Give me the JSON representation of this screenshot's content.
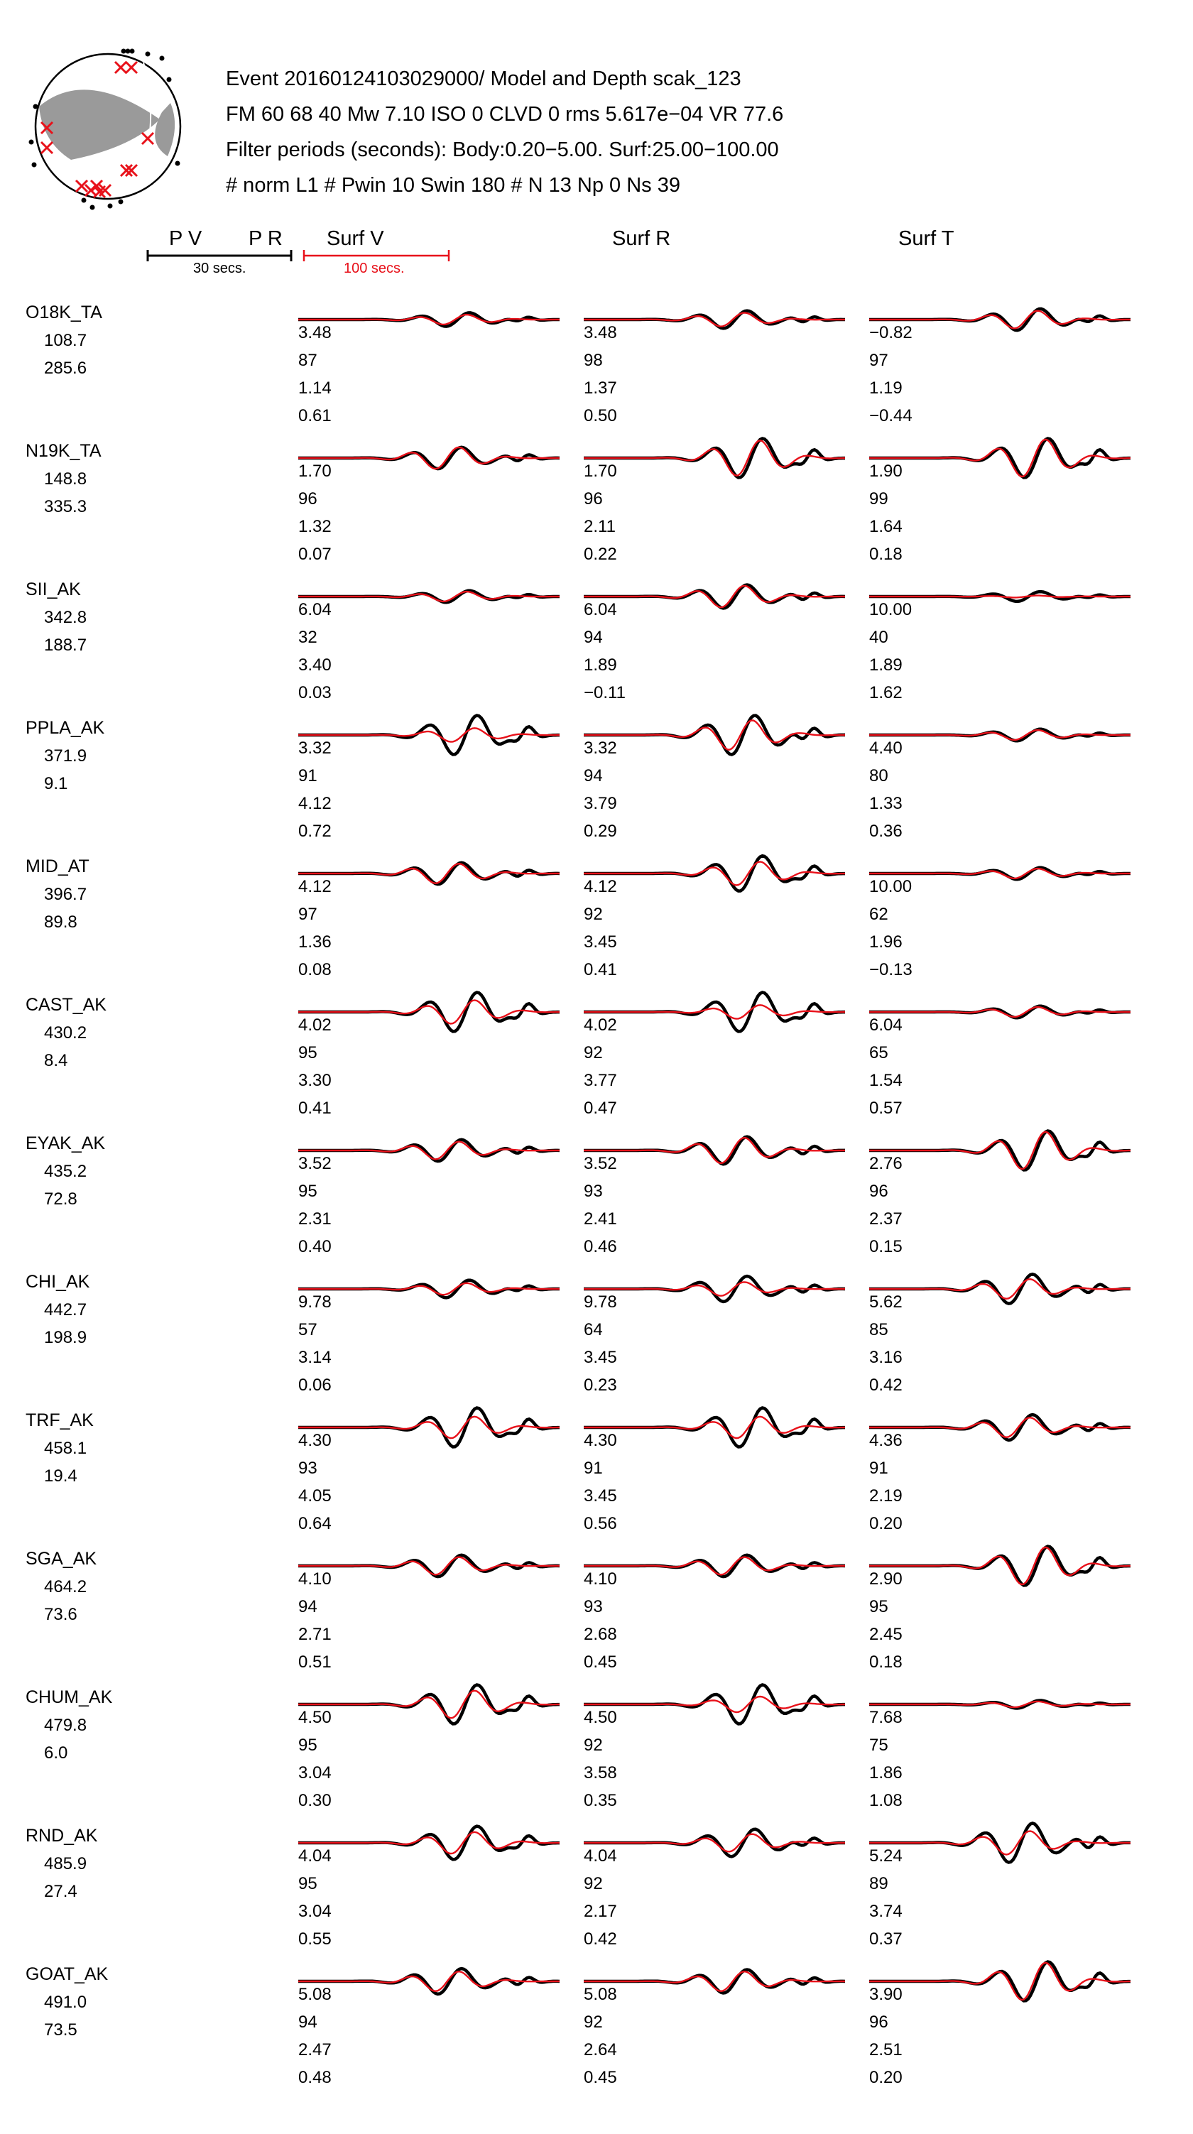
{
  "header": {
    "lines": [
      "Event 20160124103029000/ Model and Depth scak_123",
      "FM 60 68 40 Mw 7.10 ISO   0 CLVD   0 rms 5.617e−04 VR 77.6",
      "Filter periods (seconds): Body:0.20−5.00. Surf:25.00−100.00",
      "# norm L1     # Pwin 10 Swin 180     # N 13 Np 0 Ns 39"
    ]
  },
  "columns": {
    "pv": "P V",
    "pr": "P R",
    "surf_v": "Surf V",
    "surf_r": "Surf R",
    "surf_t": "Surf T",
    "body_scale": "30 secs.",
    "surf_scale": "100 secs."
  },
  "colors": {
    "observed": "#000000",
    "synthetic": "#e8111a",
    "nodal": "#9a9a9a",
    "scale_surf": "#e8111a"
  },
  "beachball": {
    "x_marks": 12,
    "dots": 14
  },
  "chart_data": {
    "type": "line",
    "series": [
      {
        "name": "observed",
        "style": "black"
      },
      {
        "name": "synthetic",
        "style": "red"
      }
    ],
    "stations": [
      {
        "name": "O18K_TA",
        "dist": "108.7",
        "az": "285.6",
        "comps": [
          [
            "3.48",
            "87",
            "1.14",
            "0.61"
          ],
          [
            "3.48",
            "98",
            "1.37",
            "0.50"
          ],
          [
            "−0.82",
            "97",
            "1.19",
            "−0.44"
          ]
        ],
        "amp": [
          [
            0.35,
            0.25
          ],
          [
            0.45,
            0.35
          ],
          [
            0.55,
            0.45
          ]
        ],
        "phase": [
          0.25,
          0.0,
          0.25
        ]
      },
      {
        "name": "N19K_TA",
        "dist": "148.8",
        "az": "335.3",
        "comps": [
          [
            "1.70",
            "96",
            "1.32",
            "0.07"
          ],
          [
            "1.70",
            "96",
            "2.11",
            "0.22"
          ],
          [
            "1.90",
            "99",
            "1.64",
            "0.18"
          ]
        ],
        "amp": [
          [
            0.55,
            0.55
          ],
          [
            1.0,
            0.9
          ],
          [
            1.0,
            0.95
          ]
        ],
        "phase": [
          0.0,
          0.5,
          0.5
        ]
      },
      {
        "name": "SII_AK",
        "dist": "342.8",
        "az": "188.7",
        "comps": [
          [
            "6.04",
            "32",
            "3.40",
            "0.03"
          ],
          [
            "6.04",
            "94",
            "1.89",
            "−0.11"
          ],
          [
            "10.00",
            "40",
            "1.89",
            "1.62"
          ]
        ],
        "amp": [
          [
            0.3,
            0.25
          ],
          [
            0.6,
            0.55
          ],
          [
            0.25,
            0.05
          ]
        ],
        "phase": [
          0.25,
          0.0,
          0.25
        ]
      },
      {
        "name": "PPLA_AK",
        "dist": "371.9",
        "az": "9.1",
        "comps": [
          [
            "3.32",
            "91",
            "4.12",
            "0.72"
          ],
          [
            "3.32",
            "94",
            "3.79",
            "0.29"
          ],
          [
            "4.40",
            "80",
            "1.33",
            "0.36"
          ]
        ],
        "amp": [
          [
            1.0,
            0.35
          ],
          [
            1.0,
            0.75
          ],
          [
            0.3,
            0.25
          ]
        ],
        "phase": [
          0.5,
          0.25,
          0.25
        ]
      },
      {
        "name": "MID_AT",
        "dist": "396.7",
        "az": "89.8",
        "comps": [
          [
            "4.12",
            "97",
            "1.36",
            "0.08"
          ],
          [
            "4.12",
            "92",
            "3.45",
            "0.41"
          ],
          [
            "10.00",
            "62",
            "1.96",
            "−0.13"
          ]
        ],
        "amp": [
          [
            0.55,
            0.5
          ],
          [
            0.9,
            0.6
          ],
          [
            0.3,
            0.25
          ]
        ],
        "phase": [
          0.0,
          0.5,
          0.25
        ]
      },
      {
        "name": "CAST_AK",
        "dist": "430.2",
        "az": "8.4",
        "comps": [
          [
            "4.02",
            "95",
            "3.30",
            "0.41"
          ],
          [
            "4.02",
            "92",
            "3.77",
            "0.47"
          ],
          [
            "6.04",
            "65",
            "1.54",
            "0.57"
          ]
        ],
        "amp": [
          [
            1.0,
            0.6
          ],
          [
            1.0,
            0.35
          ],
          [
            0.3,
            0.25
          ]
        ],
        "phase": [
          0.5,
          0.5,
          0.25
        ]
      },
      {
        "name": "EYAK_AK",
        "dist": "435.2",
        "az": "72.8",
        "comps": [
          [
            "3.52",
            "95",
            "2.31",
            "0.40"
          ],
          [
            "3.52",
            "93",
            "2.41",
            "0.46"
          ],
          [
            "2.76",
            "96",
            "2.37",
            "0.15"
          ]
        ],
        "amp": [
          [
            0.55,
            0.45
          ],
          [
            0.7,
            0.65
          ],
          [
            1.0,
            0.95
          ]
        ],
        "phase": [
          0.0,
          0.0,
          0.5
        ]
      },
      {
        "name": "CHI_AK",
        "dist": "442.7",
        "az": "198.9",
        "comps": [
          [
            "9.78",
            "57",
            "3.14",
            "0.06"
          ],
          [
            "9.78",
            "64",
            "3.45",
            "0.23"
          ],
          [
            "5.62",
            "85",
            "3.16",
            "0.42"
          ]
        ],
        "amp": [
          [
            0.45,
            0.3
          ],
          [
            0.65,
            0.35
          ],
          [
            0.75,
            0.5
          ]
        ],
        "phase": [
          0.25,
          0.0,
          0.0
        ]
      },
      {
        "name": "TRF_AK",
        "dist": "458.1",
        "az": "19.4",
        "comps": [
          [
            "4.30",
            "93",
            "4.05",
            "0.64"
          ],
          [
            "4.30",
            "91",
            "3.45",
            "0.56"
          ],
          [
            "4.36",
            "91",
            "2.19",
            "0.20"
          ]
        ],
        "amp": [
          [
            1.0,
            0.55
          ],
          [
            1.0,
            0.55
          ],
          [
            0.65,
            0.5
          ]
        ],
        "phase": [
          0.5,
          0.5,
          0.0
        ]
      },
      {
        "name": "SGA_AK",
        "dist": "464.2",
        "az": "73.6",
        "comps": [
          [
            "4.10",
            "94",
            "2.71",
            "0.51"
          ],
          [
            "4.10",
            "93",
            "2.68",
            "0.45"
          ],
          [
            "2.90",
            "95",
            "2.45",
            "0.18"
          ]
        ],
        "amp": [
          [
            0.55,
            0.45
          ],
          [
            0.55,
            0.45
          ],
          [
            1.0,
            0.95
          ]
        ],
        "phase": [
          0.0,
          0.0,
          0.5
        ]
      },
      {
        "name": "CHUM_AK",
        "dist": "479.8",
        "az": "6.0",
        "comps": [
          [
            "4.50",
            "95",
            "3.04",
            "0.30"
          ],
          [
            "4.50",
            "92",
            "3.58",
            "0.35"
          ],
          [
            "7.68",
            "75",
            "1.86",
            "1.08"
          ]
        ],
        "amp": [
          [
            1.0,
            0.7
          ],
          [
            1.0,
            0.4
          ],
          [
            0.2,
            0.15
          ]
        ],
        "phase": [
          0.5,
          0.5,
          0.25
        ]
      },
      {
        "name": "RND_AK",
        "dist": "485.9",
        "az": "27.4",
        "comps": [
          [
            "4.04",
            "95",
            "3.04",
            "0.55"
          ],
          [
            "4.04",
            "92",
            "2.17",
            "0.42"
          ],
          [
            "5.24",
            "89",
            "3.74",
            "0.37"
          ]
        ],
        "amp": [
          [
            0.85,
            0.55
          ],
          [
            0.7,
            0.45
          ],
          [
            1.0,
            0.6
          ]
        ],
        "phase": [
          0.5,
          0.25,
          0.0
        ]
      },
      {
        "name": "GOAT_AK",
        "dist": "491.0",
        "az": "73.5",
        "comps": [
          [
            "5.08",
            "94",
            "2.47",
            "0.48"
          ],
          [
            "5.08",
            "92",
            "2.64",
            "0.45"
          ],
          [
            "3.90",
            "96",
            "2.51",
            "0.20"
          ]
        ],
        "amp": [
          [
            0.65,
            0.5
          ],
          [
            0.6,
            0.5
          ],
          [
            1.0,
            0.95
          ]
        ],
        "phase": [
          0.0,
          0.0,
          0.5
        ]
      }
    ]
  }
}
